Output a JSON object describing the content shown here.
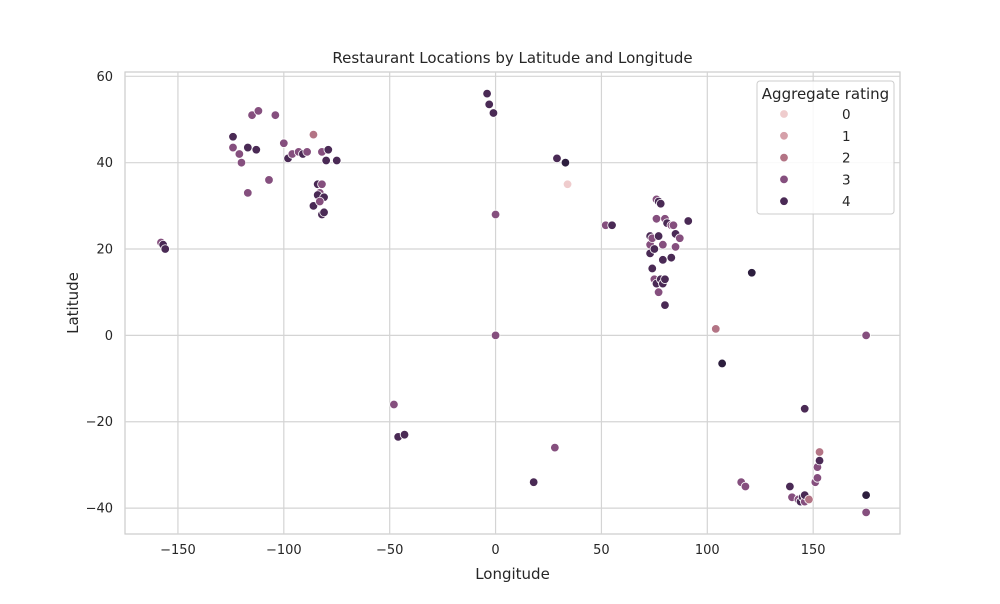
{
  "chart_data": {
    "type": "scatter",
    "title": "Restaurant Locations by Latitude and Longitude",
    "xlabel": "Longitude",
    "ylabel": "Latitude",
    "xlim": [
      -175,
      191
    ],
    "ylim": [
      -46,
      61
    ],
    "xticks": [
      -150,
      -100,
      -50,
      0,
      50,
      100,
      150
    ],
    "yticks": [
      -40,
      -20,
      0,
      20,
      40,
      60
    ],
    "xtick_labels": [
      "−150",
      "−100",
      "−50",
      "0",
      "50",
      "100",
      "150"
    ],
    "ytick_labels": [
      "−40",
      "−20",
      "0",
      "20",
      "40",
      "60"
    ],
    "grid": true,
    "legend": {
      "title": "Aggregate rating",
      "placement": "top-right",
      "entries": [
        {
          "label": "0",
          "color": "#efcccd"
        },
        {
          "label": "1",
          "color": "#d5a0a9"
        },
        {
          "label": "2",
          "color": "#b37485"
        },
        {
          "label": "3",
          "color": "#854f7e"
        },
        {
          "label": "4",
          "color": "#4a2a55"
        }
      ]
    },
    "palette": {
      "0": "#efcccd",
      "1": "#d5a0a9",
      "2": "#b37485",
      "3": "#854f7e",
      "4": "#4a2a55",
      "4.5": "#2d1e3e"
    },
    "points": [
      {
        "x": -158,
        "y": 21.5,
        "r": 3
      },
      {
        "x": -157,
        "y": 21,
        "r": 4
      },
      {
        "x": -156,
        "y": 20,
        "r": 4
      },
      {
        "x": -124,
        "y": 46,
        "r": 4
      },
      {
        "x": -124,
        "y": 43.5,
        "r": 3
      },
      {
        "x": -117,
        "y": 33,
        "r": 3
      },
      {
        "x": -121,
        "y": 42,
        "r": 3
      },
      {
        "x": -120,
        "y": 40,
        "r": 3
      },
      {
        "x": -117,
        "y": 43.5,
        "r": 4
      },
      {
        "x": -115,
        "y": 51,
        "r": 3
      },
      {
        "x": -112,
        "y": 52,
        "r": 3
      },
      {
        "x": -113,
        "y": 43,
        "r": 4
      },
      {
        "x": -107,
        "y": 36,
        "r": 3
      },
      {
        "x": -104,
        "y": 51,
        "r": 3
      },
      {
        "x": -100,
        "y": 44.5,
        "r": 3
      },
      {
        "x": -98,
        "y": 41,
        "r": 4
      },
      {
        "x": -96,
        "y": 42,
        "r": 3
      },
      {
        "x": -93,
        "y": 42.5,
        "r": 3
      },
      {
        "x": -91,
        "y": 42,
        "r": 4
      },
      {
        "x": -89,
        "y": 42.5,
        "r": 3
      },
      {
        "x": -86,
        "y": 46.5,
        "r": 2
      },
      {
        "x": -86,
        "y": 30,
        "r": 4
      },
      {
        "x": -84,
        "y": 35,
        "r": 4
      },
      {
        "x": -83,
        "y": 33,
        "r": 3
      },
      {
        "x": -84,
        "y": 32.5,
        "r": 4
      },
      {
        "x": -82,
        "y": 35,
        "r": 3
      },
      {
        "x": -81,
        "y": 32,
        "r": 4
      },
      {
        "x": -83,
        "y": 31,
        "r": 3
      },
      {
        "x": -82,
        "y": 28,
        "r": 4
      },
      {
        "x": -81,
        "y": 28.5,
        "r": 4
      },
      {
        "x": -82,
        "y": 42.5,
        "r": 3
      },
      {
        "x": -80,
        "y": 40.5,
        "r": 4
      },
      {
        "x": -79,
        "y": 43,
        "r": 4
      },
      {
        "x": -75,
        "y": 40.5,
        "r": 4
      },
      {
        "x": -48,
        "y": -16,
        "r": 3
      },
      {
        "x": -46,
        "y": -23.5,
        "r": 4
      },
      {
        "x": -43,
        "y": -23,
        "r": 4
      },
      {
        "x": -4,
        "y": 56,
        "r": 4
      },
      {
        "x": -3,
        "y": 53.5,
        "r": 4
      },
      {
        "x": -1,
        "y": 51.5,
        "r": 4
      },
      {
        "x": 0,
        "y": 28,
        "r": 3
      },
      {
        "x": 0,
        "y": 0,
        "r": 3
      },
      {
        "x": 28,
        "y": -26,
        "r": 3
      },
      {
        "x": 18,
        "y": -34,
        "r": 4
      },
      {
        "x": 29,
        "y": 41,
        "r": 4
      },
      {
        "x": 33,
        "y": 40,
        "r": 4.5
      },
      {
        "x": 34,
        "y": 35,
        "r": 0
      },
      {
        "x": 52,
        "y": 25.5,
        "r": 3
      },
      {
        "x": 55,
        "y": 25.5,
        "r": 4
      },
      {
        "x": 73,
        "y": 23,
        "r": 4
      },
      {
        "x": 73,
        "y": 21,
        "r": 3
      },
      {
        "x": 73,
        "y": 19,
        "r": 4
      },
      {
        "x": 74,
        "y": 22.5,
        "r": 3
      },
      {
        "x": 74,
        "y": 15.5,
        "r": 4
      },
      {
        "x": 75,
        "y": 13,
        "r": 3
      },
      {
        "x": 75,
        "y": 20,
        "r": 4
      },
      {
        "x": 76,
        "y": 31.5,
        "r": 3
      },
      {
        "x": 77,
        "y": 31,
        "r": 4
      },
      {
        "x": 78,
        "y": 30.5,
        "r": 4
      },
      {
        "x": 76,
        "y": 27,
        "r": 3
      },
      {
        "x": 77,
        "y": 23,
        "r": 4
      },
      {
        "x": 76,
        "y": 12,
        "r": 4
      },
      {
        "x": 77,
        "y": 10,
        "r": 3
      },
      {
        "x": 78,
        "y": 13,
        "r": 4
      },
      {
        "x": 79,
        "y": 17.5,
        "r": 4
      },
      {
        "x": 79,
        "y": 21,
        "r": 3
      },
      {
        "x": 79,
        "y": 12,
        "r": 4
      },
      {
        "x": 80,
        "y": 13,
        "r": 4
      },
      {
        "x": 80,
        "y": 7,
        "r": 4
      },
      {
        "x": 80,
        "y": 27,
        "r": 3
      },
      {
        "x": 81,
        "y": 26,
        "r": 4
      },
      {
        "x": 83,
        "y": 25.5,
        "r": 3
      },
      {
        "x": 83,
        "y": 18,
        "r": 4
      },
      {
        "x": 84,
        "y": 25.5,
        "r": 3
      },
      {
        "x": 85,
        "y": 20.5,
        "r": 3
      },
      {
        "x": 85,
        "y": 23.5,
        "r": 4
      },
      {
        "x": 87,
        "y": 22.5,
        "r": 3
      },
      {
        "x": 91,
        "y": 26.5,
        "r": 4
      },
      {
        "x": 104,
        "y": 1.5,
        "r": 2
      },
      {
        "x": 107,
        "y": -6.5,
        "r": 4.5
      },
      {
        "x": 121,
        "y": 14.5,
        "r": 4.5
      },
      {
        "x": 116,
        "y": -34,
        "r": 3
      },
      {
        "x": 118,
        "y": -35,
        "r": 3
      },
      {
        "x": 139,
        "y": -35,
        "r": 4
      },
      {
        "x": 140,
        "y": -37.5,
        "r": 3
      },
      {
        "x": 143,
        "y": -38,
        "r": 3
      },
      {
        "x": 144,
        "y": -38.5,
        "r": 4
      },
      {
        "x": 145,
        "y": -37.5,
        "r": 4
      },
      {
        "x": 146,
        "y": -38.5,
        "r": 3
      },
      {
        "x": 146,
        "y": -37,
        "r": 4
      },
      {
        "x": 148,
        "y": -38,
        "r": 2
      },
      {
        "x": 146,
        "y": -17,
        "r": 4
      },
      {
        "x": 151,
        "y": -34,
        "r": 3
      },
      {
        "x": 152,
        "y": -30.5,
        "r": 3
      },
      {
        "x": 153,
        "y": -27,
        "r": 2
      },
      {
        "x": 153,
        "y": -29,
        "r": 4
      },
      {
        "x": 152,
        "y": -33,
        "r": 3
      },
      {
        "x": 175,
        "y": 0,
        "r": 3
      },
      {
        "x": 175,
        "y": -37,
        "r": 4.5
      },
      {
        "x": 175,
        "y": -41,
        "r": 3
      }
    ]
  }
}
